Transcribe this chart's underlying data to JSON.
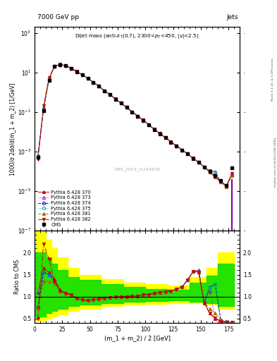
{
  "title_left": "7000 GeV pp",
  "title_right": "Jets",
  "watermark": "CMS_2013_I1224539",
  "xlabel": "(m_1 + m_2) / 2 [GeV]",
  "ylabel_main": "1000/σ 2dσ/d(m_1 + m_2) [1/GeV]",
  "ylabel_ratio": "Ratio to CMS",
  "rivet_label": "Rivet 3.1.10, ≥ 3.1M events",
  "arxiv_label": "[arXiv:1306.3436]",
  "mcplots_label": "mcplots.cern.ch",
  "x_data": [
    3,
    8,
    13,
    18,
    23,
    28,
    33,
    38,
    43,
    48,
    53,
    58,
    63,
    68,
    73,
    78,
    83,
    88,
    93,
    98,
    103,
    108,
    113,
    118,
    123,
    128,
    133,
    138,
    143,
    148,
    153,
    158,
    163,
    168,
    173,
    178
  ],
  "cms_y": [
    0.0005,
    0.12,
    4.0,
    20.0,
    25.0,
    22.0,
    16.0,
    11.0,
    7.5,
    5.0,
    3.2,
    2.0,
    1.2,
    0.75,
    0.45,
    0.28,
    0.17,
    0.1,
    0.062,
    0.038,
    0.022,
    0.013,
    0.008,
    0.005,
    0.003,
    0.0019,
    0.0012,
    0.00075,
    0.00045,
    0.00028,
    0.00017,
    0.0001,
    6e-05,
    3.5e-05,
    2e-05,
    0.00015
  ],
  "cms_yerr": [
    0.0001,
    0.02,
    0.3,
    1.0,
    1.0,
    0.8,
    0.6,
    0.4,
    0.3,
    0.2,
    0.12,
    0.08,
    0.05,
    0.03,
    0.02,
    0.012,
    0.008,
    0.005,
    0.003,
    0.002,
    0.001,
    0.0008,
    0.0005,
    0.0003,
    0.0002,
    0.00012,
    8e-05,
    5e-05,
    3e-05,
    2e-05,
    1.2e-05,
    7e-06,
    4e-06,
    3e-06,
    2e-06,
    2e-05
  ],
  "p370_y": [
    0.0006,
    0.15,
    4.8,
    21.5,
    25.5,
    22.5,
    16.5,
    11.3,
    7.6,
    5.1,
    3.25,
    2.02,
    1.21,
    0.76,
    0.455,
    0.282,
    0.171,
    0.102,
    0.063,
    0.039,
    0.0228,
    0.0133,
    0.0082,
    0.0051,
    0.0031,
    0.00195,
    0.00122,
    0.00077,
    0.00046,
    0.00029,
    0.000165,
    9.5e-05,
    5.5e-05,
    3.2e-05,
    1.9e-05,
    7e-05
  ],
  "p373_y": [
    0.00055,
    0.145,
    4.7,
    21.2,
    25.3,
    22.3,
    16.4,
    11.2,
    7.6,
    5.1,
    3.25,
    2.02,
    1.21,
    0.76,
    0.455,
    0.282,
    0.171,
    0.102,
    0.063,
    0.039,
    0.0228,
    0.0133,
    0.0082,
    0.0051,
    0.0031,
    0.00195,
    0.00122,
    0.00077,
    0.00046,
    0.00029,
    0.000165,
    9.8e-05,
    5.8e-05,
    3e-05,
    1.8e-05,
    6.5e-05
  ],
  "p374_y": [
    0.00055,
    0.145,
    4.7,
    21.2,
    25.3,
    22.3,
    16.4,
    11.2,
    7.6,
    5.1,
    3.25,
    2.02,
    1.21,
    0.76,
    0.455,
    0.282,
    0.171,
    0.102,
    0.063,
    0.039,
    0.0228,
    0.0133,
    0.0082,
    0.0051,
    0.0031,
    0.00195,
    0.00122,
    0.00077,
    0.00046,
    0.000285,
    0.00017,
    0.000105,
    9.5e-05,
    2.8e-05,
    1.8e-05,
    6.5e-05
  ],
  "p375_y": [
    0.0006,
    0.15,
    4.75,
    21.3,
    25.4,
    22.4,
    16.4,
    11.2,
    7.6,
    5.1,
    3.25,
    2.02,
    1.21,
    0.76,
    0.455,
    0.282,
    0.171,
    0.102,
    0.063,
    0.039,
    0.0228,
    0.0133,
    0.0082,
    0.0051,
    0.0031,
    0.00195,
    0.00122,
    0.00077,
    0.00046,
    0.000285,
    0.00017,
    0.000105,
    9.5e-05,
    2.8e-05,
    1.85e-05,
    6.5e-05
  ],
  "p381_y": [
    0.0005,
    0.14,
    4.6,
    21.0,
    25.2,
    22.2,
    16.3,
    11.2,
    7.6,
    5.1,
    3.25,
    2.02,
    1.21,
    0.76,
    0.455,
    0.282,
    0.171,
    0.102,
    0.063,
    0.039,
    0.0228,
    0.0133,
    0.0082,
    0.0051,
    0.0031,
    0.00195,
    0.00122,
    0.00077,
    0.00046,
    0.00029,
    0.000165,
    9.2e-05,
    5e-05,
    2.8e-05,
    1.7e-05,
    6e-05
  ],
  "p382_y": [
    0.0004,
    0.2,
    5.5,
    21.5,
    25.5,
    22.5,
    16.5,
    11.3,
    7.6,
    5.1,
    3.25,
    2.02,
    1.21,
    0.76,
    0.455,
    0.282,
    0.171,
    0.102,
    0.063,
    0.039,
    0.0228,
    0.0133,
    0.0082,
    0.0051,
    0.0031,
    0.00195,
    0.00122,
    0.00077,
    0.00046,
    0.00028,
    0.000165,
    9e-05,
    5e-05,
    2.9e-05,
    1.8e-05,
    7.5e-05
  ],
  "ratio_370": [
    1.1,
    1.65,
    1.55,
    1.4,
    1.15,
    1.08,
    1.05,
    0.96,
    0.93,
    0.91,
    0.93,
    0.95,
    0.97,
    0.98,
    0.99,
    1.0,
    1.0,
    1.01,
    1.02,
    1.04,
    1.05,
    1.07,
    1.09,
    1.11,
    1.13,
    1.17,
    1.22,
    1.38,
    1.57,
    1.6,
    0.88,
    0.62,
    0.5,
    0.45,
    0.42,
    0.4
  ],
  "ratio_373": [
    0.75,
    1.55,
    1.5,
    1.35,
    1.13,
    1.07,
    1.04,
    0.96,
    0.93,
    0.91,
    0.93,
    0.95,
    0.97,
    0.98,
    0.99,
    1.0,
    1.0,
    1.01,
    1.02,
    1.04,
    1.05,
    1.07,
    1.09,
    1.11,
    1.13,
    1.17,
    1.22,
    1.38,
    1.57,
    1.55,
    0.85,
    1.12,
    0.52,
    0.4,
    0.41,
    0.38
  ],
  "ratio_374": [
    0.75,
    1.55,
    1.5,
    1.35,
    1.13,
    1.07,
    1.04,
    0.96,
    0.93,
    0.91,
    0.93,
    0.95,
    0.97,
    0.98,
    0.99,
    1.0,
    1.0,
    1.01,
    1.02,
    1.04,
    1.05,
    1.07,
    1.09,
    1.11,
    1.13,
    1.17,
    1.22,
    1.38,
    1.57,
    1.58,
    0.87,
    1.22,
    1.28,
    0.46,
    0.42,
    0.38
  ],
  "ratio_375": [
    1.1,
    1.55,
    1.5,
    1.32,
    1.13,
    1.07,
    1.04,
    0.96,
    0.93,
    0.91,
    0.93,
    0.95,
    0.97,
    0.98,
    0.99,
    1.0,
    1.0,
    1.01,
    1.02,
    1.04,
    1.05,
    1.07,
    1.09,
    1.11,
    1.13,
    1.17,
    1.22,
    1.38,
    1.57,
    1.58,
    0.87,
    1.22,
    1.28,
    0.47,
    0.43,
    0.38
  ],
  "ratio_381": [
    0.75,
    1.35,
    1.35,
    1.3,
    1.13,
    1.07,
    1.04,
    0.96,
    0.93,
    0.91,
    0.93,
    0.95,
    0.97,
    0.98,
    0.99,
    1.0,
    1.0,
    1.01,
    1.02,
    1.04,
    1.05,
    1.07,
    1.09,
    1.11,
    1.13,
    1.17,
    1.22,
    1.38,
    1.57,
    1.58,
    0.87,
    0.73,
    0.62,
    0.48,
    0.42,
    0.38
  ],
  "ratio_382": [
    0.5,
    2.2,
    1.85,
    1.35,
    1.13,
    1.07,
    1.04,
    0.96,
    0.93,
    0.91,
    0.93,
    0.95,
    0.97,
    0.98,
    0.99,
    1.0,
    1.0,
    1.01,
    1.02,
    1.04,
    1.05,
    1.07,
    1.09,
    1.11,
    1.13,
    1.17,
    1.22,
    1.38,
    1.57,
    1.55,
    0.85,
    0.62,
    0.52,
    0.44,
    0.42,
    0.42
  ],
  "band_edges": [
    0,
    5,
    10,
    15,
    20,
    30,
    40,
    60,
    80,
    100,
    120,
    140,
    155,
    165,
    180
  ],
  "yellow_lo": [
    0.45,
    0.45,
    0.5,
    0.55,
    0.6,
    0.68,
    0.73,
    0.78,
    0.82,
    0.84,
    0.86,
    0.85,
    0.82,
    0.72,
    0.45
  ],
  "yellow_hi": [
    2.5,
    2.5,
    2.3,
    2.1,
    1.9,
    1.65,
    1.5,
    1.4,
    1.32,
    1.28,
    1.25,
    1.45,
    1.65,
    2.0,
    2.5
  ],
  "green_lo": [
    0.55,
    0.55,
    0.62,
    0.68,
    0.73,
    0.78,
    0.82,
    0.86,
    0.88,
    0.9,
    0.91,
    0.89,
    0.86,
    0.78,
    0.55
  ],
  "green_hi": [
    2.0,
    2.0,
    1.9,
    1.75,
    1.6,
    1.45,
    1.38,
    1.28,
    1.22,
    1.18,
    1.15,
    1.32,
    1.48,
    1.75,
    2.0
  ],
  "color_370": "#cc0000",
  "color_373": "#9900cc",
  "color_374": "#0000cc",
  "color_375": "#00aaaa",
  "color_381": "#aa6600",
  "color_382": "#cc0000",
  "xlim": [
    0,
    185
  ],
  "ylim_main": [
    1e-07,
    2000.0
  ],
  "ylim_ratio": [
    0.4,
    2.5
  ],
  "ratio_yticks": [
    0.5,
    1.0,
    1.5,
    2.0
  ]
}
